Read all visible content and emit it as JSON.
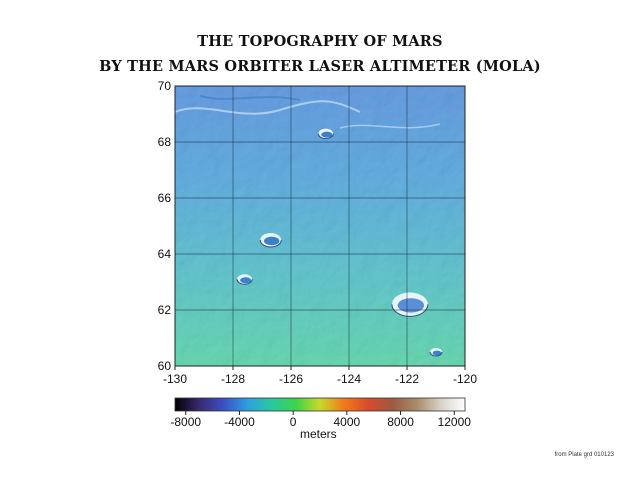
{
  "title_line1": "THE TOPOGRAPHY OF MARS",
  "title_line2": "BY THE MARS ORBITER LASER ALTIMETER (MOLA)",
  "map": {
    "lon_range": [
      -130,
      -120
    ],
    "lat_range": [
      60,
      70
    ],
    "lon_ticks": [
      "-130",
      "-128",
      "-126",
      "-124",
      "-122",
      "-120"
    ],
    "lat_ticks": [
      "70",
      "68",
      "66",
      "64",
      "62",
      "60"
    ],
    "grid": true,
    "features": [
      {
        "type": "crater",
        "lon": -126.7,
        "lat": 64.5
      },
      {
        "type": "crater",
        "lon": -121.9,
        "lat": 62.2
      },
      {
        "type": "crater",
        "lon": -124.8,
        "lat": 68.3
      },
      {
        "type": "crater",
        "lon": -127.6,
        "lat": 63.1
      },
      {
        "type": "crater",
        "lon": -121.0,
        "lat": 60.5
      }
    ]
  },
  "colorbar": {
    "tick_labels": [
      "-8000",
      "-4000",
      "0",
      "4000",
      "8000",
      "12000"
    ],
    "tick_values": [
      -8000,
      -4000,
      0,
      4000,
      8000,
      12000
    ],
    "range": [
      -8800,
      12800
    ],
    "unit": "meters",
    "colors": [
      "#000000",
      "#3a2a6e",
      "#3b4fc4",
      "#2f9fe0",
      "#27c9a0",
      "#3ed24a",
      "#c7d92a",
      "#f07a1a",
      "#d84a2a",
      "#9c5a42",
      "#a88c6a",
      "#d8d2c8",
      "#ffffff"
    ]
  },
  "credit": "from Plate grd 010123"
}
